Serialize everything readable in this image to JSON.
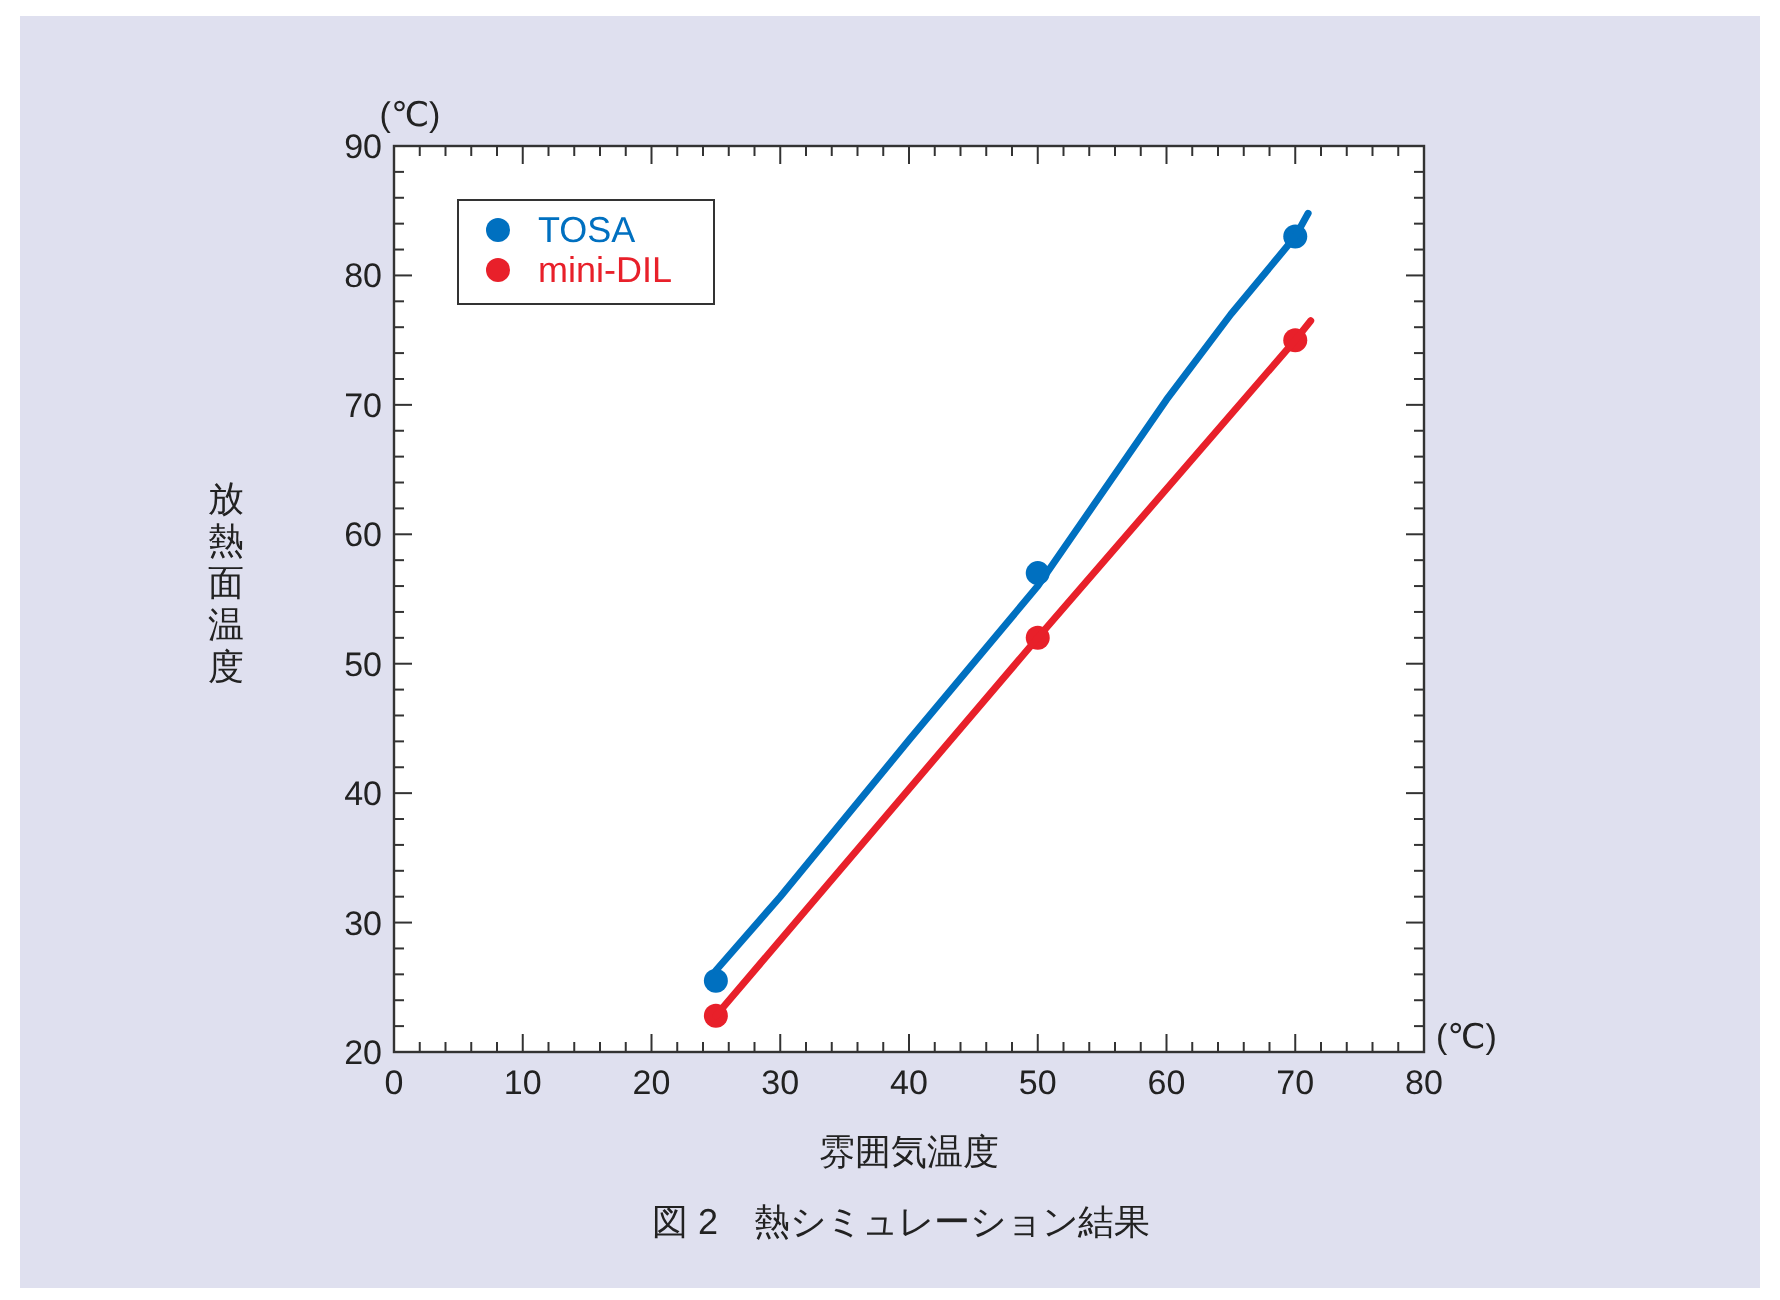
{
  "chart_data": {
    "type": "scatter",
    "title": "図 2　熱シミュレーション結果",
    "xlabel": "雰囲気温度",
    "ylabel": "放熱面温度",
    "annotations": [
      "(℃)",
      "(℃)"
    ],
    "xlim": [
      0,
      80
    ],
    "ylim": [
      20,
      90
    ],
    "xticks": [
      0,
      10,
      20,
      30,
      40,
      50,
      60,
      70,
      80
    ],
    "yticks": [
      20,
      30,
      40,
      50,
      60,
      70,
      80,
      90
    ],
    "legend": "top left",
    "marker": "circle",
    "series": [
      {
        "name": "TOSA",
        "color": "#0070c0",
        "x": [
          25,
          50,
          70
        ],
        "values": [
          25.5,
          57,
          83
        ]
      },
      {
        "name": "mini-DIL",
        "color": "#e8202a",
        "x": [
          25,
          50,
          70
        ],
        "values": [
          22.8,
          52,
          75
        ]
      },
      {
        "type": "line",
        "marker": "none",
        "color": "#0070c0",
        "x": [
          25,
          30,
          40,
          50,
          60,
          65,
          70,
          71
        ],
        "values": [
          26.3,
          32,
          44.1,
          56,
          70.4,
          77,
          83,
          84.8
        ]
      },
      {
        "type": "line",
        "marker": "none",
        "color": "#e8202a",
        "x": [
          25,
          50,
          70,
          71.2
        ],
        "values": [
          22.8,
          52,
          75,
          76.5
        ]
      }
    ]
  }
}
